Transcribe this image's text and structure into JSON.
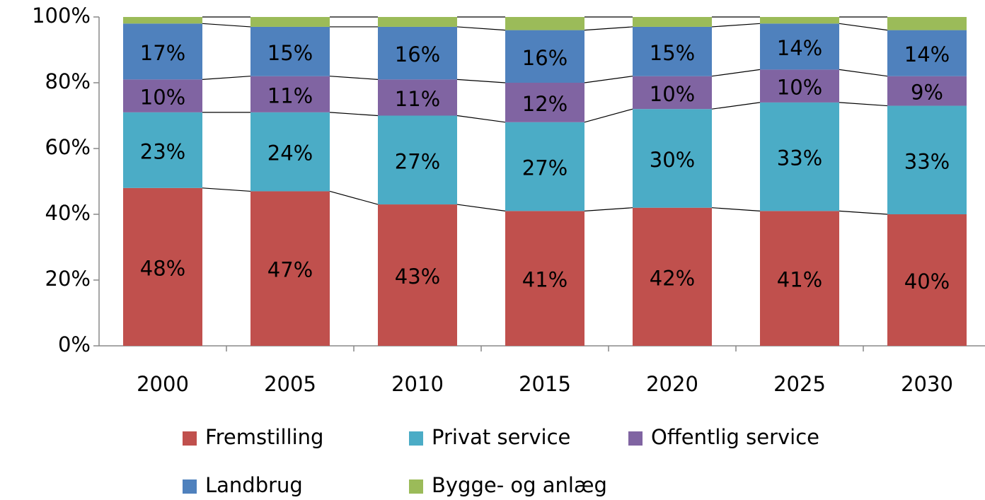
{
  "chart_data": {
    "type": "stacked_bar",
    "categories": [
      "2000",
      "2005",
      "2010",
      "2015",
      "2020",
      "2025",
      "2030"
    ],
    "series": [
      {
        "name": "Fremstilling",
        "color": "#c0504d",
        "values": [
          48,
          47,
          43,
          41,
          42,
          41,
          40
        ],
        "value_labels": [
          "48%",
          "47%",
          "43%",
          "41%",
          "42%",
          "41%",
          "40%"
        ]
      },
      {
        "name": "Privat service",
        "color": "#4bacc6",
        "values": [
          23,
          24,
          27,
          27,
          30,
          33,
          33
        ],
        "value_labels": [
          "23%",
          "24%",
          "27%",
          "27%",
          "30%",
          "33%",
          "33%"
        ]
      },
      {
        "name": "Offentlig service",
        "color": "#8064a2",
        "values": [
          10,
          11,
          11,
          12,
          10,
          10,
          9
        ],
        "value_labels": [
          "10%",
          "11%",
          "11%",
          "12%",
          "10%",
          "10%",
          "9%"
        ]
      },
      {
        "name": "Landbrug",
        "color": "#4f81bd",
        "values": [
          17,
          15,
          16,
          16,
          15,
          14,
          14
        ],
        "value_labels": [
          "17%",
          "15%",
          "16%",
          "16%",
          "15%",
          "14%",
          "14%"
        ]
      },
      {
        "name": "Bygge- og anlæg",
        "color": "#9bbb59",
        "values": [
          2,
          3,
          3,
          4,
          3,
          2,
          4
        ]
      }
    ],
    "ylim": [
      0,
      100
    ],
    "yticks": [
      {
        "value": 0,
        "label": "0%"
      },
      {
        "value": 20,
        "label": "20%"
      },
      {
        "value": 40,
        "label": "40%"
      },
      {
        "value": 60,
        "label": "60%"
      },
      {
        "value": 80,
        "label": "80%"
      },
      {
        "value": 100,
        "label": "100%"
      }
    ],
    "legend": "bottom"
  }
}
